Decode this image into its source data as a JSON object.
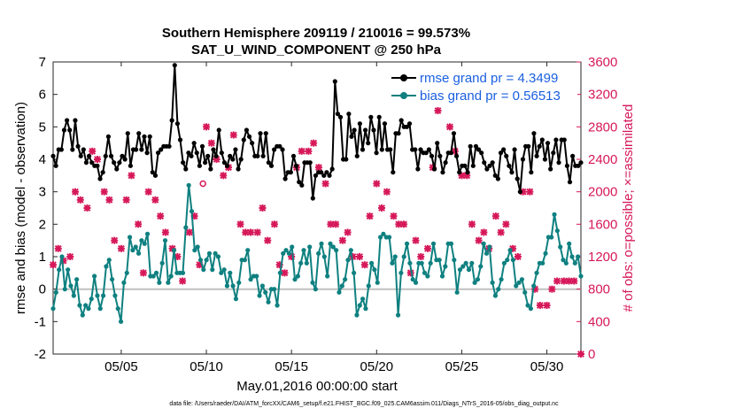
{
  "chart_data": {
    "type": "line",
    "title": "Southern Hemisphere 209119 / 210016 = 99.573%",
    "subtitle": "SAT_U_WIND_COMPONENT @ 250 hPa",
    "xlabel": "May.01,2016 00:00:00 start",
    "ylabel": "rmse and bias (model - observation)",
    "ylabel_right": "# of obs: o=possible; ×=assimilated",
    "footnote": "data file: /Users/raeder/DAI/ATM_forcXX/CAM6_setup/f.e21.FHIST_BGC.f09_025.CAM6assim.011/Diags_NTrS_2016-05/obs_diag_output.nc",
    "xlim": [
      1,
      32
    ],
    "ylim": [
      -2,
      7
    ],
    "ylim_right": [
      0,
      3600
    ],
    "x_ticks": [
      5,
      10,
      15,
      20,
      25,
      30
    ],
    "x_tick_labels": [
      "05/05",
      "05/10",
      "05/15",
      "05/20",
      "05/25",
      "05/30"
    ],
    "y_ticks": [
      -2,
      -1,
      0,
      1,
      2,
      3,
      4,
      5,
      6,
      7
    ],
    "y_ticks_right": [
      0,
      400,
      800,
      1200,
      1600,
      2000,
      2400,
      2800,
      3200,
      3600
    ],
    "legend_position": "top-right",
    "colors": {
      "rmse": "#000000",
      "bias": "#0f8080",
      "obs": "#d6185a",
      "zero": "#c0c0c0"
    },
    "series": [
      {
        "name": "rmse grand pr = 4.3499",
        "values": [
          4.1,
          3.8,
          4.3,
          4.3,
          4.9,
          5.2,
          4.9,
          4.3,
          5.2,
          4.4,
          4.1,
          4.3,
          3.9,
          4.1,
          3.9,
          3.8,
          3.8,
          3.4,
          3.6,
          4.1,
          4.7,
          4.1,
          3.9,
          3.7,
          3.9,
          4.1,
          4.0,
          4.8,
          3.8,
          4.3,
          4.3,
          4.8,
          4.3,
          4.7,
          4.2,
          4.7,
          3.6,
          3.5,
          4.2,
          4.3,
          4.4,
          4.4,
          4.4,
          5.2,
          6.9,
          5.1,
          4.6,
          3.9,
          3.7,
          4.2,
          4.1,
          4.5,
          4.2,
          3.8,
          4.4,
          3.9,
          4.1,
          3.7,
          4.3,
          4.1,
          4.9,
          4.2,
          3.9,
          3.8,
          4.1,
          4.0,
          4.3,
          3.7,
          4.0,
          4.6,
          4.9,
          4.7,
          4.5,
          4.1,
          4.1,
          4.8,
          4.1,
          4.8,
          3.9,
          3.8,
          4.3,
          4.4,
          4.4,
          4.3,
          3.4,
          3.6,
          3.6,
          4.1,
          3.8,
          3.3,
          3.2,
          3.9,
          3.9,
          3.9,
          2.8,
          3.5,
          3.6,
          3.6,
          3.5,
          3.6,
          3.5,
          3.7,
          6.4,
          5.4,
          5.3,
          4.0,
          4.0,
          5.4,
          4.7,
          4.9,
          4.1,
          5.1,
          4.3,
          4.9,
          4.5,
          5.3,
          4.9,
          4.2,
          5.3,
          4.3,
          5.1,
          4.3,
          4.3,
          3.6,
          4.8,
          4.8,
          5.2,
          5.0,
          5.0,
          5.1,
          4.3,
          4.3,
          3.7,
          4.3,
          4.2,
          4.2,
          4.3,
          4.1,
          3.7,
          4.5,
          4.1,
          3.6,
          3.9,
          4.2,
          4.2,
          4.8,
          4.1,
          3.6,
          3.8,
          3.8,
          3.6,
          4.4,
          3.8,
          4.4,
          4.3,
          4.2,
          3.9,
          3.7,
          3.8,
          3.9,
          3.5,
          3.4,
          4.2,
          4.3,
          4.1,
          3.8,
          3.6,
          4.3,
          3.4,
          3.0,
          4.0,
          4.4,
          4.4,
          3.6,
          4.8,
          4.1,
          4.4,
          4.6,
          4.0,
          4.5,
          3.7,
          4.2,
          4.6,
          3.9,
          4.6,
          4.6,
          3.8,
          3.3,
          4.1,
          3.8,
          3.8,
          3.9
        ]
      },
      {
        "name": "bias grand pr = 0.56513",
        "values": [
          -0.6,
          -0.1,
          0.6,
          1.0,
          0.0,
          0.6,
          0.1,
          -0.2,
          0.3,
          -0.5,
          -0.8,
          -0.5,
          -0.6,
          -0.3,
          0.4,
          -0.2,
          -0.6,
          -0.2,
          0.7,
          0.9,
          0.3,
          -0.2,
          -0.6,
          -1.0,
          0.2,
          0.5,
          1.6,
          1.2,
          1.3,
          1.1,
          1.5,
          1.4,
          1.7,
          0.4,
          0.4,
          0.5,
          0.2,
          0.8,
          1.5,
          0.2,
          0.4,
          1.2,
          0.5,
          0.5,
          0.5,
          1.9,
          3.2,
          2.4,
          1.2,
          1.3,
          0.9,
          0.6,
          0.9,
          1.1,
          0.6,
          1.1,
          1.0,
          0.5,
          0.6,
          0.1,
          0.5,
          0.1,
          -0.3,
          0.2,
          0.9,
          0.9,
          1.2,
          0.3,
          0.4,
          0.4,
          -0.2,
          0.1,
          -0.1,
          -0.4,
          0.0,
          0.0,
          -0.5,
          0.5,
          1.1,
          1.2,
          1.1,
          1.3,
          0.3,
          0.4,
          0.8,
          1.2,
          0.8,
          1.3,
          0.2,
          0.0,
          1.1,
          1.4,
          1.0,
          0.4,
          1.4,
          1.3,
          1.2,
          -0.1,
          0.1,
          0.3,
          0.9,
          1.2,
          0.5,
          -0.8,
          -0.5,
          -0.3,
          -0.6,
          0.1,
          0.8,
          0.6,
          0.2,
          1.6,
          1.7,
          1.6,
          1.6,
          0.8,
          1.0,
          -0.8,
          0.5,
          1.0,
          1.4,
          0.8,
          0.3,
          0.2,
          0.8,
          0.8,
          0.5,
          0.4,
          0.8,
          1.4,
          0.9,
          0.9,
          0.4,
          0.7,
          1.4,
          1.4,
          0.9,
          -0.1,
          0.6,
          0.7,
          0.8,
          0.6,
          0.8,
          0.2,
          0.3,
          0.7,
          1.4,
          1.1,
          1.3,
          0.2,
          -0.2,
          0.0,
          0.3,
          0.8,
          0.9,
          1.2,
          0.9,
          0.1,
          0.2,
          0.3,
          -0.1,
          -0.5,
          -0.6,
          0.1,
          0.5,
          0.8,
          0.8,
          1.1,
          1.6,
          1.6,
          2.3,
          1.8,
          1.3,
          0.9,
          0.8,
          1.4,
          1.0,
          0.8,
          1.0,
          0.4
        ]
      }
    ],
    "obs_possible": {
      "x": [
        9.8
      ],
      "values": [
        2100
      ]
    },
    "obs_assimilated": {
      "x": [
        1.0,
        1.3,
        1.6,
        2.0,
        2.3,
        2.6,
        3.0,
        3.3,
        3.6,
        4.0,
        4.3,
        4.6,
        5.0,
        5.3,
        5.6,
        6.0,
        6.3,
        6.6,
        7.0,
        7.3,
        7.6,
        8.0,
        8.3,
        8.6,
        9.0,
        9.3,
        9.6,
        10.0,
        10.3,
        10.6,
        11.0,
        11.3,
        11.6,
        12.0,
        12.3,
        12.6,
        13.0,
        13.3,
        13.6,
        14.0,
        14.3,
        14.6,
        15.0,
        15.3,
        15.6,
        16.0,
        16.3,
        16.6,
        17.0,
        17.3,
        17.6,
        18.0,
        18.3,
        18.6,
        19.0,
        19.3,
        19.6,
        20.0,
        20.3,
        20.6,
        21.0,
        21.3,
        21.6,
        22.0,
        22.3,
        22.6,
        23.0,
        23.3,
        23.6,
        24.0,
        24.3,
        24.6,
        25.0,
        25.3,
        25.6,
        26.0,
        26.3,
        26.6,
        27.0,
        27.3,
        27.6,
        28.0,
        28.3,
        28.6,
        29.0,
        29.3,
        29.6,
        30.0,
        30.3,
        30.6,
        31.0,
        31.3,
        31.6,
        32.0
      ],
      "values": [
        1100,
        1300,
        1150,
        1200,
        2000,
        1900,
        1800,
        2500,
        2400,
        2000,
        1900,
        1400,
        1300,
        1900,
        2200,
        1600,
        1000,
        2000,
        1900,
        1700,
        1500,
        1300,
        1200,
        900,
        1500,
        1700,
        1100,
        2800,
        2600,
        2400,
        2200,
        2300,
        2700,
        1600,
        1500,
        1500,
        1500,
        1800,
        1400,
        1600,
        1100,
        1000,
        1200,
        2300,
        2500,
        2500,
        2600,
        2300,
        2100,
        1600,
        1600,
        1400,
        1500,
        1200,
        1200,
        1100,
        1700,
        2100,
        1800,
        2000,
        1700,
        1600,
        1600,
        1000,
        1400,
        1200,
        1300,
        2300,
        3000,
        3100,
        2800,
        2500,
        2200,
        2200,
        1600,
        1400,
        1500,
        1300,
        1700,
        1500,
        1600,
        1300,
        1200,
        2000,
        2000,
        800,
        600,
        600,
        800,
        900,
        900,
        900,
        900,
        0
      ]
    }
  }
}
